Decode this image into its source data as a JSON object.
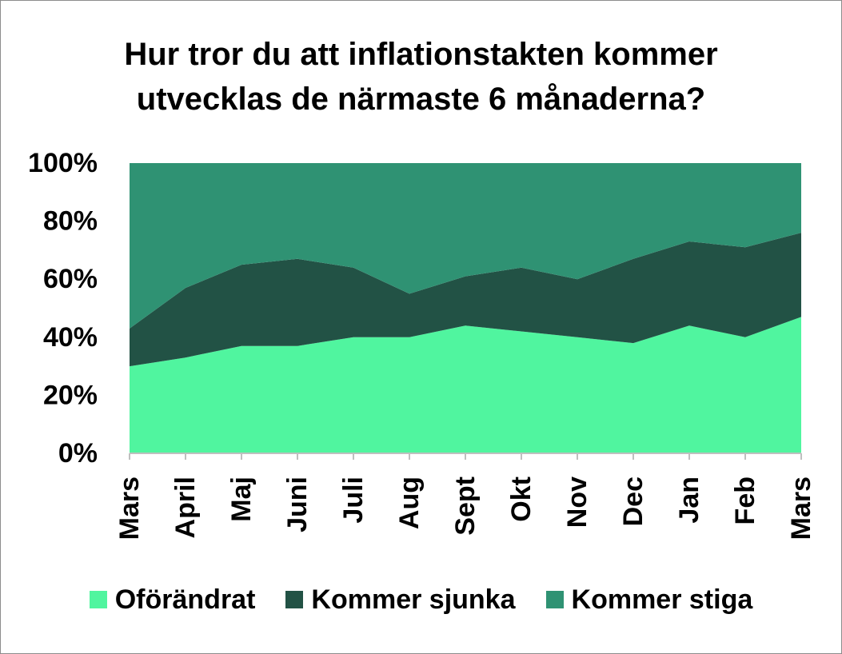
{
  "chart_data": {
    "type": "area",
    "stacked": true,
    "percent": true,
    "title_lines": [
      "Hur tror du att inflationstakten kommer",
      "utvecklas de närmaste 6 månaderna?"
    ],
    "categories": [
      "Mars",
      "April",
      "Maj",
      "Juni",
      "Juli",
      "Aug",
      "Sept",
      "Okt",
      "Nov",
      "Dec",
      "Jan",
      "Feb",
      "Mars"
    ],
    "y_ticks": [
      "0%",
      "20%",
      "40%",
      "60%",
      "80%",
      "100%"
    ],
    "ylim": [
      0,
      100
    ],
    "grid": false,
    "legend_position": "bottom",
    "series": [
      {
        "name": "Oförändrat",
        "color": "#50f59f",
        "values": [
          30,
          33,
          37,
          37,
          40,
          40,
          44,
          42,
          40,
          38,
          44,
          40,
          47
        ]
      },
      {
        "name": "Kommer sjunka",
        "color": "#225245",
        "values": [
          13,
          24,
          28,
          30,
          24,
          15,
          17,
          22,
          20,
          29,
          29,
          31,
          29
        ]
      },
      {
        "name": "Kommer stiga",
        "color": "#2f9273",
        "values": [
          57,
          43,
          35,
          33,
          36,
          45,
          39,
          36,
          40,
          33,
          27,
          29,
          24
        ]
      }
    ]
  }
}
